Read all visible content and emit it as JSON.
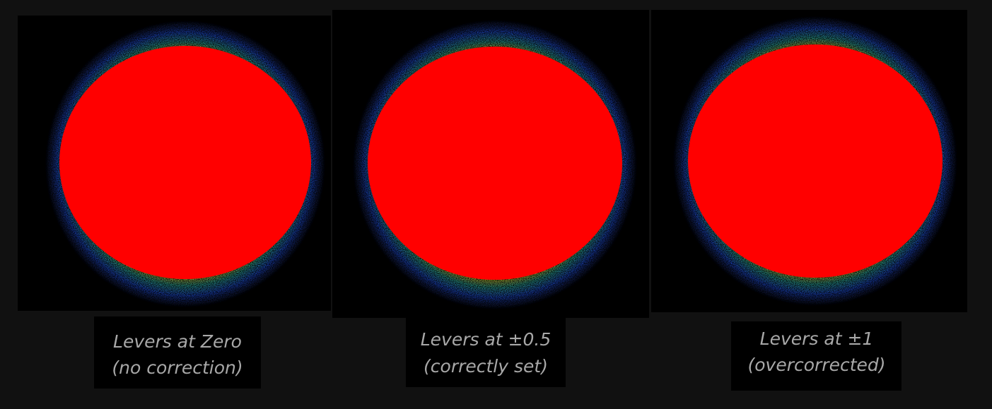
{
  "panels": [
    {
      "label": [
        "Levers at Zero",
        "(no correction)"
      ]
    },
    {
      "label": [
        "Levers at ±0.5",
        "(correctly set)"
      ]
    },
    {
      "label": [
        "Levers at ±1",
        "(overcorrected)"
      ]
    }
  ]
}
